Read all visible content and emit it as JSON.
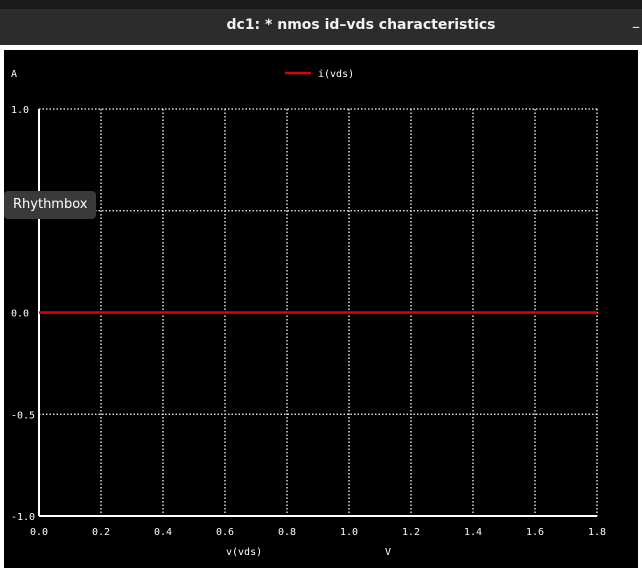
{
  "window": {
    "title": "dc1: * nmos id–vds characteristics",
    "minimize_glyph": "–"
  },
  "tooltip": {
    "text": "Rhythmbox"
  },
  "colors": {
    "background": "#000000",
    "grid": "#ffffff",
    "series": "#e00000",
    "titlebar": "#2c2c2c"
  },
  "chart_data": {
    "type": "line",
    "title": "",
    "xlabel": "v(vds)",
    "xunit": "V",
    "ylabel": "A",
    "xlim": [
      0,
      1.8
    ],
    "ylim": [
      -1.0,
      1.0
    ],
    "grid": true,
    "legend_position": "top-center",
    "x_ticks": [
      {
        "value": 0.0,
        "label": "0.0"
      },
      {
        "value": 0.2,
        "label": "0.2"
      },
      {
        "value": 0.4,
        "label": "0.4"
      },
      {
        "value": 0.6,
        "label": "0.6"
      },
      {
        "value": 0.8,
        "label": "0.8"
      },
      {
        "value": 1.0,
        "label": "1.0"
      },
      {
        "value": 1.2,
        "label": "1.2"
      },
      {
        "value": 1.4,
        "label": "1.4"
      },
      {
        "value": 1.6,
        "label": "1.6"
      },
      {
        "value": 1.8,
        "label": "1.8"
      }
    ],
    "y_ticks": [
      {
        "value": 1.0,
        "label": "1.0"
      },
      {
        "value": 0.5,
        "label": ""
      },
      {
        "value": 0.0,
        "label": "0.0"
      },
      {
        "value": -0.5,
        "label": "-0.5"
      },
      {
        "value": -1.0,
        "label": "-1.0"
      }
    ],
    "series": [
      {
        "name": "i(vds)",
        "color": "#e00000",
        "x": [
          0.0,
          1.8
        ],
        "y": [
          0.0,
          0.0
        ]
      }
    ]
  }
}
